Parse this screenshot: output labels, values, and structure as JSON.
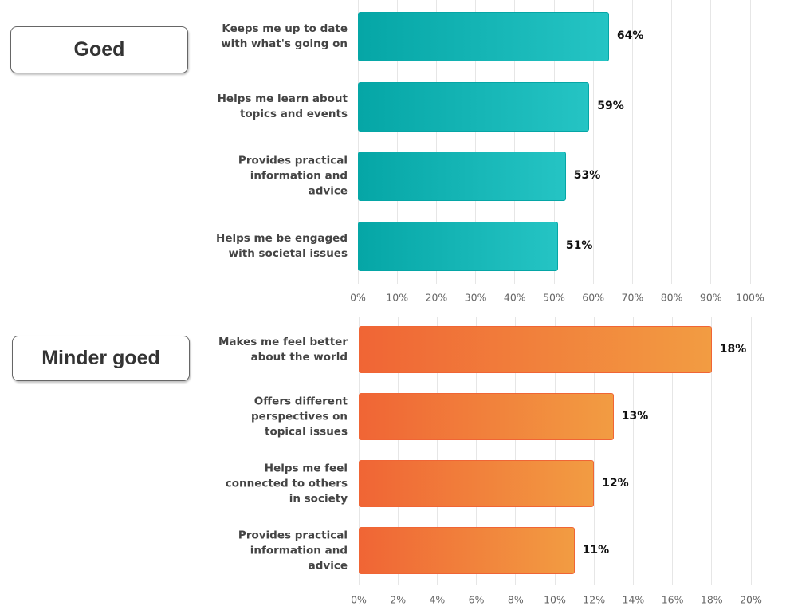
{
  "chart_data": [
    {
      "type": "bar",
      "orientation": "horizontal",
      "group_label": "Goed",
      "categories": [
        "Keeps me up to date with what's going on",
        "Helps me learn about topics and events",
        "Provides practical information and advice",
        "Helps me be engaged with societal issues"
      ],
      "values": [
        64,
        59,
        53,
        51
      ],
      "value_labels": [
        "64%",
        "59%",
        "53%",
        "51%"
      ],
      "colors": [
        "#05a6a6",
        "#25c4c4"
      ],
      "xlim": [
        0,
        100
      ],
      "xticks": [
        {
          "value": 0,
          "label": "0%"
        },
        {
          "value": 10,
          "label": "10%"
        },
        {
          "value": 20,
          "label": "20%"
        },
        {
          "value": 30,
          "label": "30%"
        },
        {
          "value": 40,
          "label": "40%"
        },
        {
          "value": 50,
          "label": "50%"
        },
        {
          "value": 60,
          "label": "60%"
        },
        {
          "value": 70,
          "label": "70%"
        },
        {
          "value": 80,
          "label": "80%"
        },
        {
          "value": 90,
          "label": "90%"
        },
        {
          "value": 100,
          "label": "100%"
        }
      ],
      "grid": true
    },
    {
      "type": "bar",
      "orientation": "horizontal",
      "group_label": "Minder goed",
      "categories": [
        "Makes me feel better about the world",
        "Offers different perspectives on topical issues",
        "Helps me feel connected to others in society",
        "Provides practical information and advice"
      ],
      "values": [
        18,
        13,
        12,
        11
      ],
      "value_labels": [
        "18%",
        "13%",
        "12%",
        "11%"
      ],
      "colors": [
        "#f06535",
        "#f29c42"
      ],
      "xlim": [
        0,
        20
      ],
      "xticks": [
        {
          "value": 0,
          "label": "0%"
        },
        {
          "value": 2,
          "label": "2%"
        },
        {
          "value": 4,
          "label": "4%"
        },
        {
          "value": 6,
          "label": "6%"
        },
        {
          "value": 8,
          "label": "8%"
        },
        {
          "value": 10,
          "label": "10%"
        },
        {
          "value": 12,
          "label": "12%"
        },
        {
          "value": 14,
          "label": "14%"
        },
        {
          "value": 16,
          "label": "16%"
        },
        {
          "value": 18,
          "label": "18%"
        },
        {
          "value": 20,
          "label": "20%"
        }
      ],
      "grid": true
    }
  ]
}
